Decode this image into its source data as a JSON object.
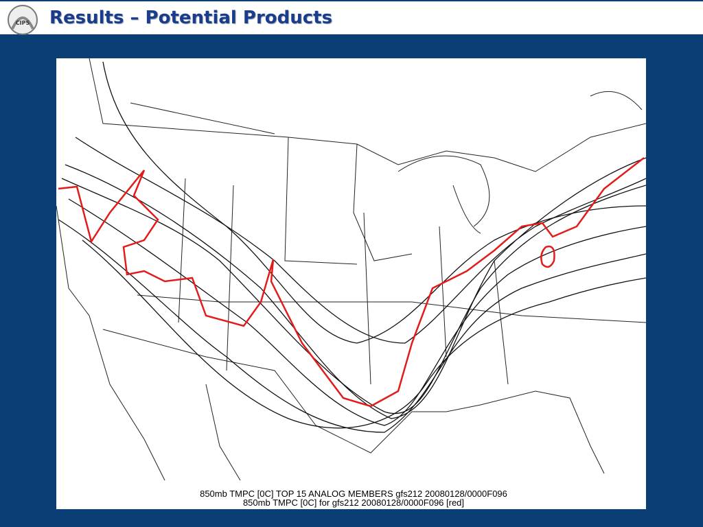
{
  "header": {
    "title": "Results – Potential Products",
    "logo": "CIPS"
  },
  "figure": {
    "caption_lines": [
      "850mb TMPC [0C] TOP 15 ANALOG MEMBERS gfs212 20080128/0000F096",
      "850mb TMPC [0C] for gfs212 20080128/0000F096 [red]"
    ]
  }
}
